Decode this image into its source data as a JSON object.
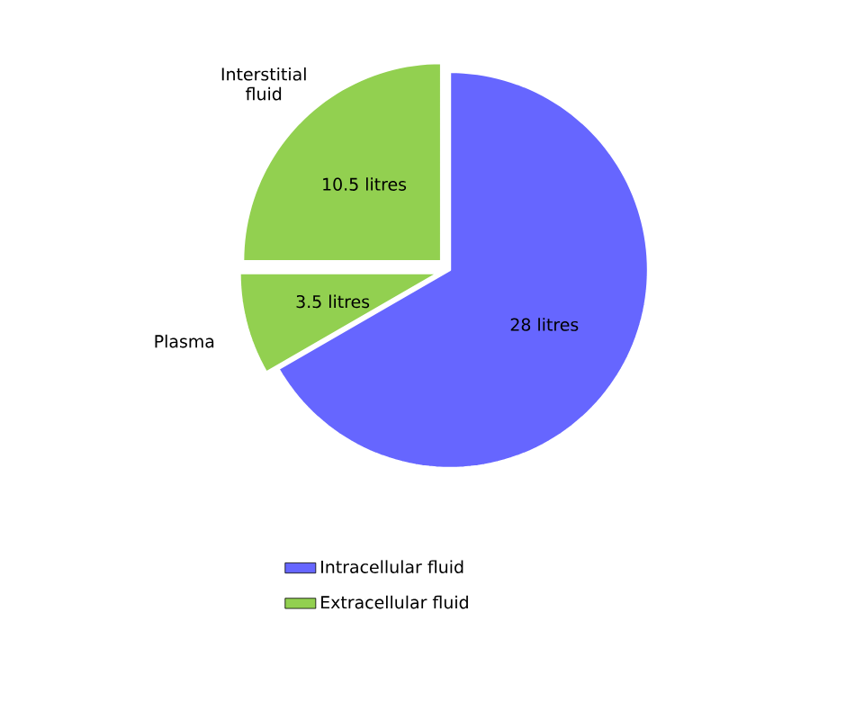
{
  "chart_data": {
    "type": "pie",
    "categories": [
      "Intracellular fluid",
      "Plasma",
      "Interstitial fluid"
    ],
    "values": [
      28,
      3.5,
      10.5
    ],
    "colors": [
      "#6666ff",
      "#92d050",
      "#92d050"
    ],
    "value_labels": [
      "28 litres",
      "3.5 litres",
      "10.5 litres"
    ],
    "annotations": [
      "Extracellular fluid"
    ],
    "legend": "bottom"
  }
}
